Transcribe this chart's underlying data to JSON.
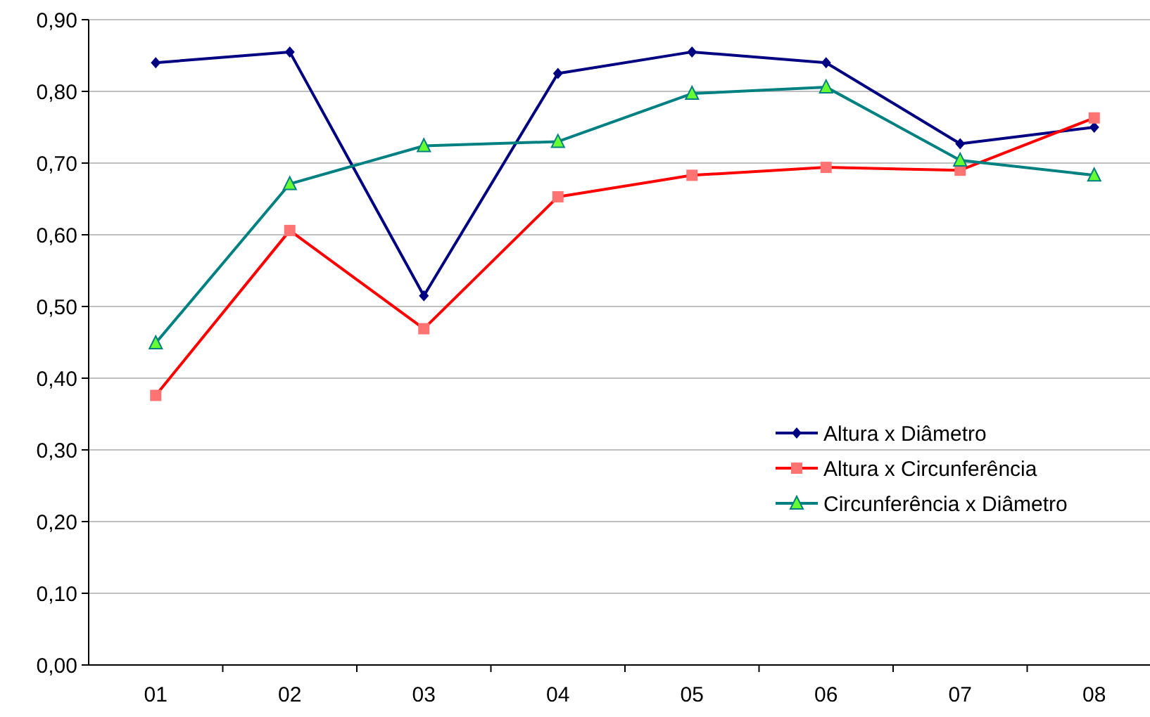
{
  "chart_data": {
    "type": "line",
    "categories": [
      "01",
      "02",
      "03",
      "04",
      "05",
      "06",
      "07",
      "08"
    ],
    "series": [
      {
        "name": "Altura x Diâmetro",
        "color": "#000080",
        "marker": "diamond",
        "values": [
          0.84,
          0.855,
          0.515,
          0.825,
          0.855,
          0.84,
          0.727,
          0.75
        ]
      },
      {
        "name": "Altura x Circunferência",
        "color": "#ff0000",
        "marker": "square",
        "values": [
          0.376,
          0.606,
          0.469,
          0.653,
          0.683,
          0.694,
          0.69,
          0.763
        ]
      },
      {
        "name": "Circunferência x Diâmetro",
        "color": "#008080",
        "marker": "triangle",
        "values": [
          0.449,
          0.671,
          0.724,
          0.73,
          0.797,
          0.806,
          0.704,
          0.683
        ]
      }
    ],
    "ylim": [
      0,
      0.9
    ],
    "yticks": [
      {
        "value": 0,
        "label": "0,00"
      },
      {
        "value": 0.1,
        "label": "0,10"
      },
      {
        "value": 0.2,
        "label": "0,20"
      },
      {
        "value": 0.3,
        "label": "0,30"
      },
      {
        "value": 0.4,
        "label": "0,40"
      },
      {
        "value": 0.5,
        "label": "0,50"
      },
      {
        "value": 0.6,
        "label": "0,60"
      },
      {
        "value": 0.7,
        "label": "0,70"
      },
      {
        "value": 0.8,
        "label": "0,80"
      },
      {
        "value": 0.9,
        "label": "0,90"
      }
    ],
    "grid": "y",
    "legend": "right",
    "line_style": "solid"
  }
}
